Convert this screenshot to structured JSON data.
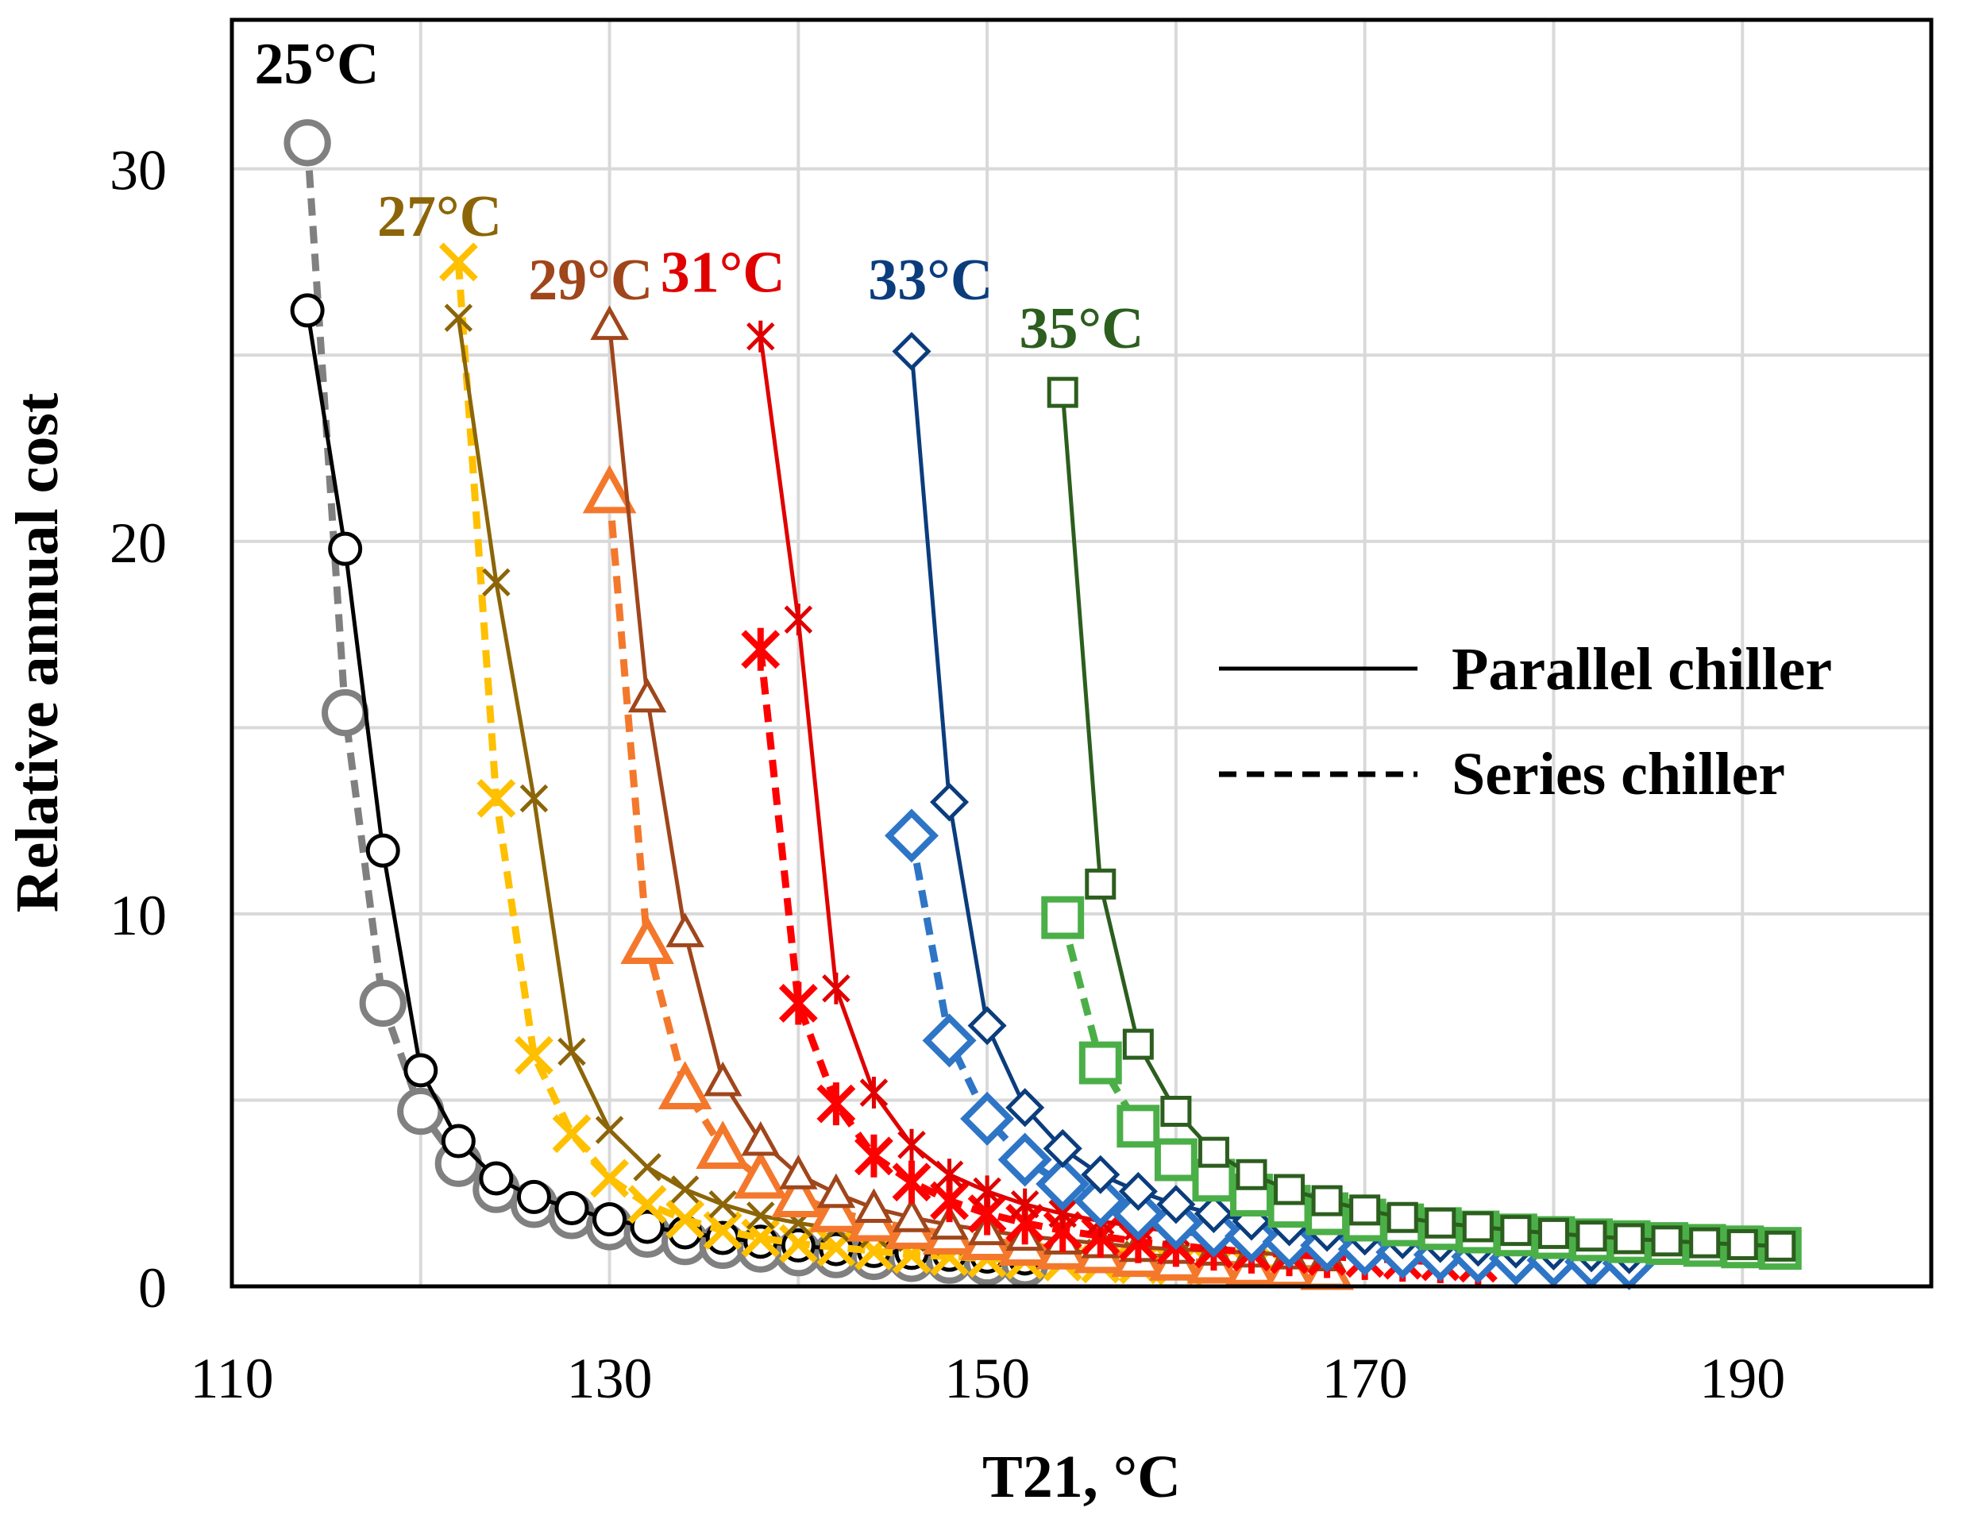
{
  "chart_data": {
    "type": "line",
    "xlabel": "T21, °C",
    "ylabel": "Relative annual cost",
    "xlim": [
      110,
      200
    ],
    "ylim": [
      0,
      34
    ],
    "x_ticks": [
      110,
      130,
      150,
      170,
      190
    ],
    "y_ticks": [
      0,
      10,
      20,
      30
    ],
    "grid": true,
    "legend": {
      "position": "right-middle",
      "entries": [
        {
          "label": "Parallel chiller",
          "style": "solid"
        },
        {
          "label": "Series chiller",
          "style": "dashed"
        }
      ]
    },
    "groups": [
      {
        "label": "25°C",
        "label_color": "#000000",
        "marker": "circle",
        "series": [
          {
            "style": "solid",
            "color": "#000000",
            "x": [
              114,
              116,
              118,
              120,
              122,
              124,
              126,
              128,
              130,
              132,
              134,
              136,
              138,
              140,
              142,
              144,
              146,
              148,
              150,
              152
            ],
            "y": [
              26.2,
              19.8,
              11.7,
              5.8,
              3.9,
              2.9,
              2.4,
              2.1,
              1.8,
              1.6,
              1.45,
              1.3,
              1.2,
              1.1,
              1.0,
              0.95,
              0.9,
              0.85,
              0.8,
              0.75
            ]
          },
          {
            "style": "dashed",
            "color": "#808080",
            "x": [
              114,
              116,
              118,
              120,
              122,
              124,
              126,
              128,
              130,
              132,
              134,
              136,
              138,
              140,
              142,
              144,
              146,
              148,
              150,
              152
            ],
            "y": [
              30.7,
              15.4,
              7.6,
              4.7,
              3.3,
              2.6,
              2.2,
              1.9,
              1.6,
              1.4,
              1.2,
              1.1,
              1.0,
              0.9,
              0.85,
              0.8,
              0.75,
              0.7,
              0.65,
              0.6
            ]
          }
        ]
      },
      {
        "label": "27°C",
        "label_color": "#8B6508",
        "marker": "x",
        "series": [
          {
            "style": "solid",
            "color": "#8B6508",
            "x": [
              122,
              124,
              126,
              128,
              130,
              132,
              134,
              136,
              138,
              140,
              142,
              144,
              146,
              148,
              150,
              152,
              154,
              156,
              158,
              160
            ],
            "y": [
              26.0,
              18.9,
              13.1,
              6.3,
              4.2,
              3.2,
              2.6,
              2.2,
              1.9,
              1.7,
              1.55,
              1.4,
              1.3,
              1.2,
              1.1,
              1.0,
              0.95,
              0.9,
              0.85,
              0.8
            ]
          },
          {
            "style": "dashed",
            "color": "#FFC000",
            "x": [
              122,
              124,
              126,
              128,
              130,
              132,
              134,
              136,
              138,
              140,
              142,
              144,
              146,
              148,
              150,
              152,
              154,
              156,
              158,
              160,
              162,
              164,
              166,
              168
            ],
            "y": [
              27.5,
              13.1,
              6.2,
              4.1,
              2.9,
              2.2,
              1.8,
              1.5,
              1.3,
              1.15,
              1.05,
              0.95,
              0.85,
              0.8,
              0.75,
              0.7,
              0.65,
              0.6,
              0.58,
              0.55,
              0.52,
              0.5,
              0.48,
              0.46
            ]
          }
        ]
      },
      {
        "label": "29°C",
        "label_color": "#A0461B",
        "marker": "triangle",
        "series": [
          {
            "style": "solid",
            "color": "#A0461B",
            "x": [
              130,
              132,
              134,
              136,
              138,
              140,
              142,
              144,
              146,
              148,
              150,
              152,
              154,
              156,
              158,
              160,
              162,
              164,
              166,
              168
            ],
            "y": [
              25.8,
              15.8,
              9.5,
              5.5,
              3.9,
              3.0,
              2.5,
              2.1,
              1.85,
              1.65,
              1.5,
              1.35,
              1.25,
              1.15,
              1.05,
              1.0,
              0.95,
              0.9,
              0.85,
              0.8
            ]
          },
          {
            "style": "dashed",
            "color": "#F4782C",
            "x": [
              130,
              132,
              134,
              136,
              138,
              140,
              142,
              144,
              146,
              148,
              150,
              152,
              154,
              156,
              158,
              160,
              162,
              164,
              166,
              168
            ],
            "y": [
              21.3,
              9.2,
              5.3,
              3.7,
              2.9,
              2.4,
              2.0,
              1.75,
              1.55,
              1.4,
              1.25,
              1.1,
              1.0,
              0.9,
              0.8,
              0.7,
              0.62,
              0.55,
              0.5,
              0.45
            ]
          }
        ]
      },
      {
        "label": "31°C",
        "label_color": "#E00000",
        "marker": "asterisk",
        "series": [
          {
            "style": "solid",
            "color": "#E00000",
            "x": [
              138,
              140,
              142,
              144,
              146,
              148,
              150,
              152,
              154,
              156,
              158,
              160,
              162,
              164,
              166,
              168,
              170,
              172,
              174,
              176
            ],
            "y": [
              25.5,
              17.9,
              8.0,
              5.2,
              3.8,
              3.0,
              2.55,
              2.2,
              1.95,
              1.75,
              1.6,
              1.45,
              1.35,
              1.25,
              1.15,
              1.05,
              1.0,
              0.95,
              0.9,
              0.85
            ]
          },
          {
            "style": "dashed",
            "color": "#FF0000",
            "x": [
              138,
              140,
              142,
              144,
              146,
              148,
              150,
              152,
              154,
              156,
              158,
              160,
              162,
              164,
              166,
              168,
              170,
              172,
              174,
              176
            ],
            "y": [
              17.1,
              7.6,
              4.9,
              3.5,
              2.8,
              2.3,
              1.95,
              1.7,
              1.5,
              1.35,
              1.2,
              1.1,
              1.0,
              0.92,
              0.85,
              0.8,
              0.75,
              0.7,
              0.66,
              0.62
            ]
          }
        ]
      },
      {
        "label": "33°C",
        "label_color": "#0B3D7D",
        "marker": "diamond",
        "series": [
          {
            "style": "solid",
            "color": "#0B3D7D",
            "x": [
              146,
              148,
              150,
              152,
              154,
              156,
              158,
              160,
              162,
              164,
              166,
              168,
              170,
              172,
              174,
              176,
              178,
              180,
              182,
              184
            ],
            "y": [
              25.1,
              13.0,
              7.0,
              4.8,
              3.7,
              3.0,
              2.55,
              2.2,
              1.95,
              1.75,
              1.6,
              1.45,
              1.35,
              1.25,
              1.15,
              1.05,
              1.0,
              0.95,
              0.9,
              0.85
            ]
          },
          {
            "style": "dashed",
            "color": "#2E75C6",
            "x": [
              146,
              148,
              150,
              152,
              154,
              156,
              158,
              160,
              162,
              164,
              166,
              168,
              170,
              172,
              174,
              176,
              178,
              180,
              182,
              184
            ],
            "y": [
              12.1,
              6.6,
              4.5,
              3.4,
              2.75,
              2.3,
              1.95,
              1.7,
              1.5,
              1.35,
              1.2,
              1.1,
              1.0,
              0.92,
              0.85,
              0.8,
              0.75,
              0.7,
              0.66,
              0.62
            ]
          }
        ]
      },
      {
        "label": "35°C",
        "label_color": "#2C5E1E",
        "marker": "square",
        "series": [
          {
            "style": "solid",
            "color": "#2C5E1E",
            "x": [
              154,
              156,
              158,
              160,
              162,
              164,
              166,
              168,
              170,
              172,
              174,
              176,
              178,
              180,
              182,
              184,
              186,
              188,
              190,
              192
            ],
            "y": [
              24.0,
              10.8,
              6.5,
              4.7,
              3.6,
              3.0,
              2.6,
              2.3,
              2.05,
              1.85,
              1.7,
              1.6,
              1.5,
              1.42,
              1.35,
              1.28,
              1.22,
              1.17,
              1.12,
              1.08
            ]
          },
          {
            "style": "dashed",
            "color": "#4BAF48",
            "x": [
              154,
              156,
              158,
              160,
              162,
              164,
              166,
              168,
              170,
              172,
              174,
              176,
              178,
              180,
              182,
              184,
              186,
              188,
              190,
              192
            ],
            "y": [
              9.9,
              6.0,
              4.3,
              3.4,
              2.85,
              2.45,
              2.15,
              1.95,
              1.78,
              1.65,
              1.55,
              1.46,
              1.38,
              1.31,
              1.25,
              1.2,
              1.15,
              1.1,
              1.06,
              1.02
            ]
          }
        ]
      }
    ]
  }
}
